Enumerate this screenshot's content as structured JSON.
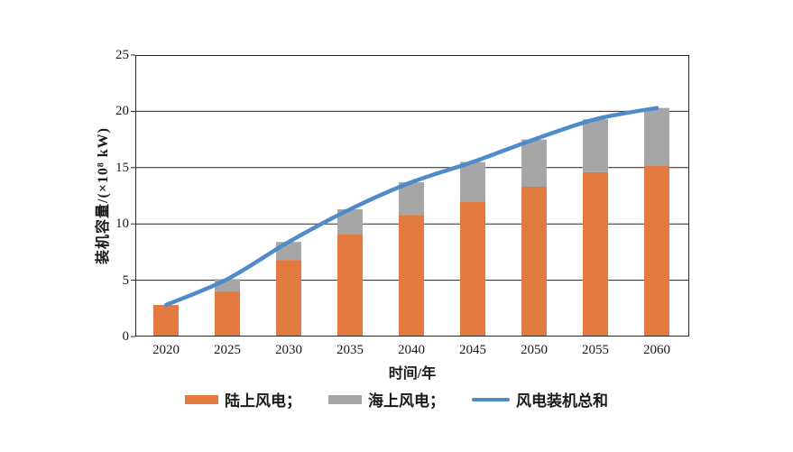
{
  "chart_data": {
    "type": "bar",
    "subtype": "stacked-bars-with-line-overlay",
    "title": "",
    "xlabel": "时间/年",
    "ylabel": "装机容量/(×10⁸ kW)",
    "categories": [
      "2020",
      "2025",
      "2030",
      "2035",
      "2040",
      "2045",
      "2050",
      "2055",
      "2060"
    ],
    "series": [
      {
        "name": "陆上风电",
        "type": "bar-stack",
        "color": "#e2793e",
        "values": [
          2.8,
          4.0,
          6.8,
          9.1,
          10.8,
          12.0,
          13.3,
          14.6,
          15.2
        ]
      },
      {
        "name": "海上风电",
        "type": "bar-stack",
        "color": "#a6a6a6",
        "values": [
          0.0,
          1.1,
          1.6,
          2.2,
          2.9,
          3.5,
          4.2,
          4.7,
          5.1
        ]
      },
      {
        "name": "风电装机总和",
        "type": "line",
        "color": "#4f8bc9",
        "values": [
          2.8,
          5.1,
          8.4,
          11.3,
          13.7,
          15.5,
          17.5,
          19.3,
          20.3
        ]
      }
    ],
    "ylim": [
      0,
      25
    ],
    "yticks": [
      "0",
      "5",
      "10",
      "15",
      "20",
      "25"
    ],
    "grid": "horizontal",
    "frame": true,
    "frame_color": "#262626",
    "legend_position": "bottom"
  },
  "legend": {
    "items": [
      {
        "label": "陆上风电；",
        "swatch": "box",
        "color": "#e2793e"
      },
      {
        "label": "海上风电；",
        "swatch": "box",
        "color": "#a6a6a6"
      },
      {
        "label": "风电装机总和",
        "swatch": "line",
        "color": "#4f8bc9"
      }
    ]
  },
  "axes": {
    "x_title": "时间/年",
    "y_title": "装机容量/(×10⁸ kW)"
  }
}
